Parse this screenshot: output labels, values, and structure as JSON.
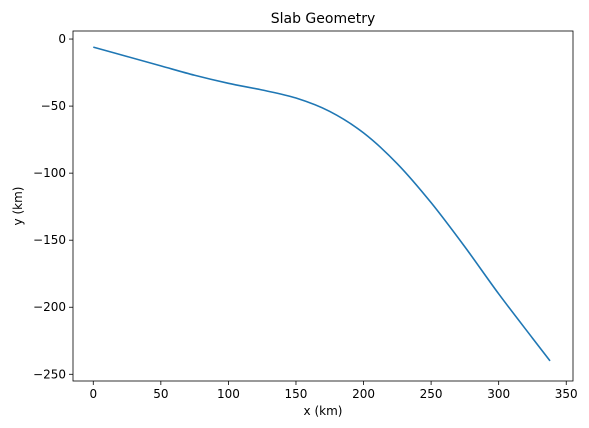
{
  "chart_data": {
    "type": "line",
    "title": "Slab Geometry",
    "xlabel": "x (km)",
    "ylabel": "y (km)",
    "xlim": [
      -15,
      355
    ],
    "ylim": [
      -255,
      6
    ],
    "grid": false,
    "x_ticks": [
      0,
      50,
      100,
      150,
      200,
      250,
      300,
      350
    ],
    "x_tick_labels": [
      "0",
      "50",
      "100",
      "150",
      "200",
      "250",
      "300",
      "350"
    ],
    "y_ticks": [
      0,
      -50,
      -100,
      -150,
      -200,
      -250
    ],
    "y_tick_labels": [
      "0",
      "−50",
      "−100",
      "−150",
      "−200",
      "−250"
    ],
    "line_color": "#1f77b4",
    "series": [
      {
        "x": [
          0,
          25,
          50,
          75,
          100,
          125,
          150,
          175,
          200,
          225,
          250,
          275,
          300,
          325,
          338
        ],
        "y": [
          -6,
          -13,
          -20,
          -27,
          -33,
          -38,
          -44,
          -54,
          -70,
          -93,
          -122,
          -155,
          -190,
          -223,
          -240
        ]
      }
    ]
  }
}
